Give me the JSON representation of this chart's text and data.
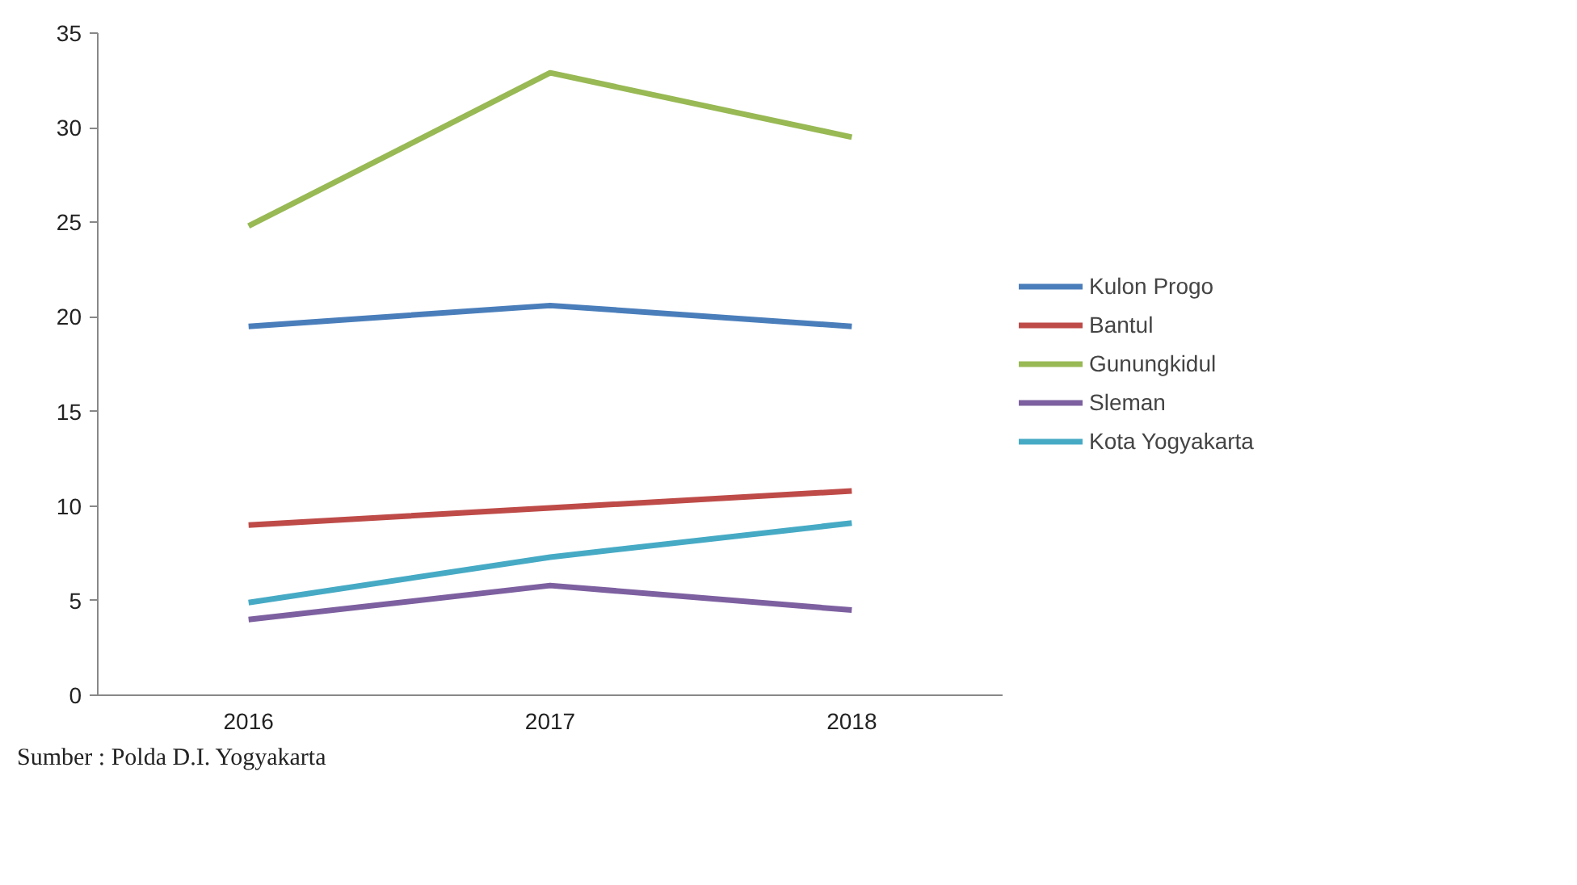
{
  "chart_data": {
    "type": "line",
    "categories": [
      "2016",
      "2017",
      "2018"
    ],
    "series": [
      {
        "name": "Kulon Progo",
        "color": "#4a7ebb",
        "values": [
          19.5,
          20.6,
          19.5
        ]
      },
      {
        "name": "Bantul",
        "color": "#be4b48",
        "values": [
          9.0,
          9.9,
          10.8
        ]
      },
      {
        "name": "Gunungkidul",
        "color": "#98b954",
        "values": [
          24.8,
          32.9,
          29.5
        ]
      },
      {
        "name": "Sleman",
        "color": "#7d60a0",
        "values": [
          4.0,
          5.8,
          4.5
        ]
      },
      {
        "name": "Kota Yogyakarta",
        "color": "#46aac5",
        "values": [
          4.9,
          7.3,
          9.1
        ]
      }
    ],
    "ylim": [
      0,
      35
    ],
    "yticks": [
      0,
      5,
      10,
      15,
      20,
      25,
      30,
      35
    ],
    "grid": false,
    "legend": "right",
    "marker": "none",
    "line_style": "solid",
    "annotations": [
      "Sumber : Polda D.I. Yogyakarta"
    ]
  }
}
